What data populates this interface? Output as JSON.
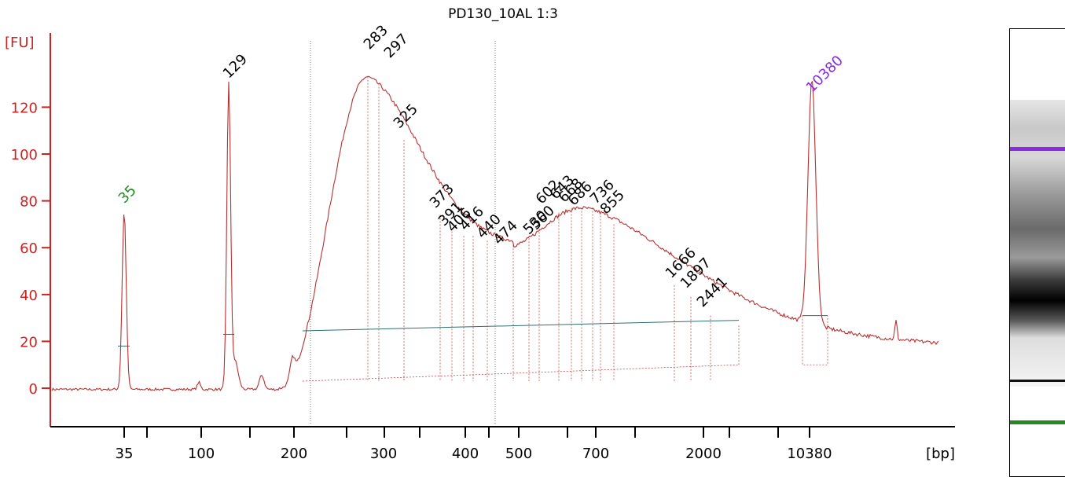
{
  "chart_data": {
    "type": "line",
    "title": "PD130_10AL 1:3",
    "ylabel": "[FU]",
    "xlabel": "[bp]",
    "ylim": [
      -15,
      150
    ],
    "yticks": [
      0,
      20,
      40,
      60,
      80,
      100,
      120
    ],
    "xtick_labels": [
      "35",
      "100",
      "200",
      "300",
      "400",
      "500",
      "700",
      "2000",
      "10380"
    ],
    "x_marker_labels": [
      "35",
      "100",
      "200",
      "300",
      "400",
      "500",
      "700",
      "2000",
      "10380"
    ],
    "colors": {
      "axis": "#cc2222",
      "trace": "#b83030",
      "baseline": "#2f6f6f",
      "lower_marker": "#228B22",
      "upper_marker": "#8a2be2"
    },
    "peaks": [
      {
        "label": "35",
        "size_bp": 35,
        "height": 76,
        "color": "#228B22"
      },
      {
        "label": "129",
        "size_bp": 129,
        "height": 130,
        "color": "#000000"
      },
      {
        "label": "283",
        "size_bp": 283,
        "height": 133,
        "color": "#000000"
      },
      {
        "label": "297",
        "size_bp": 297,
        "height": 130,
        "color": "#000000"
      },
      {
        "label": "325",
        "size_bp": 325,
        "height": 106,
        "color": "#000000"
      },
      {
        "label": "373",
        "size_bp": 373,
        "height": 74,
        "color": "#000000"
      },
      {
        "label": "391",
        "size_bp": 391,
        "height": 67,
        "color": "#000000"
      },
      {
        "label": "406",
        "size_bp": 406,
        "height": 65,
        "color": "#000000"
      },
      {
        "label": "416",
        "size_bp": 416,
        "height": 65,
        "color": "#000000"
      },
      {
        "label": "440",
        "size_bp": 440,
        "height": 63,
        "color": "#000000"
      },
      {
        "label": "474",
        "size_bp": 474,
        "height": 61,
        "color": "#000000"
      },
      {
        "label": "530",
        "size_bp": 530,
        "height": 64,
        "color": "#000000"
      },
      {
        "label": "560",
        "size_bp": 560,
        "height": 68,
        "color": "#000000"
      },
      {
        "label": "602",
        "size_bp": 602,
        "height": 75,
        "color": "#000000"
      },
      {
        "label": "643",
        "size_bp": 643,
        "height": 77,
        "color": "#000000"
      },
      {
        "label": "668",
        "size_bp": 668,
        "height": 77,
        "color": "#000000"
      },
      {
        "label": "686",
        "size_bp": 686,
        "height": 77,
        "color": "#000000"
      },
      {
        "label": "736",
        "size_bp": 736,
        "height": 75,
        "color": "#000000"
      },
      {
        "label": "855",
        "size_bp": 855,
        "height": 70,
        "color": "#000000"
      },
      {
        "label": "1666",
        "size_bp": 1666,
        "height": 44,
        "color": "#000000"
      },
      {
        "label": "1897",
        "size_bp": 1897,
        "height": 39,
        "color": "#000000"
      },
      {
        "label": "2441",
        "size_bp": 2441,
        "height": 31,
        "color": "#000000"
      },
      {
        "label": "10380",
        "size_bp": 10380,
        "height": 124,
        "color": "#8a2be2"
      }
    ]
  }
}
